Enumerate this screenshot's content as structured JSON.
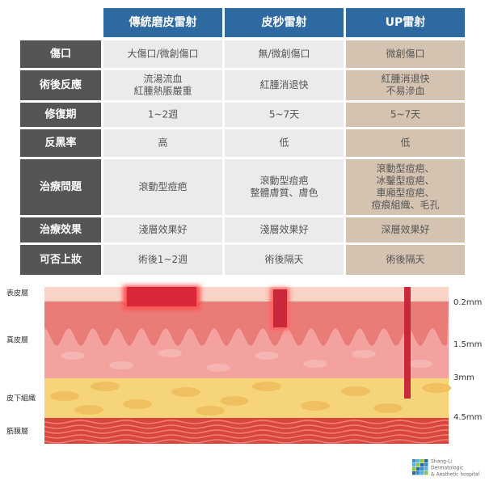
{
  "table": {
    "header": [
      "傳統磨皮雷射",
      "皮秒雷射",
      "UP雷射"
    ],
    "rows": [
      {
        "label": "傷口",
        "cells": [
          [
            "大傷口/微創傷口"
          ],
          [
            "無/微創傷口"
          ],
          [
            "微創傷口"
          ]
        ]
      },
      {
        "label": "術後反應",
        "cells": [
          [
            "流湯流血",
            "紅腫熱脹嚴重"
          ],
          [
            "紅腫消退快"
          ],
          [
            "紅腫消退快",
            "不易滲血"
          ]
        ]
      },
      {
        "label": "修復期",
        "cells": [
          [
            "1~2週"
          ],
          [
            "5~7天"
          ],
          [
            "5~7天"
          ]
        ]
      },
      {
        "label": "反黑率",
        "cells": [
          [
            "高"
          ],
          [
            "低"
          ],
          [
            "低"
          ]
        ]
      },
      {
        "label": "治療問題",
        "cells": [
          [
            "滾動型痘疤"
          ],
          [
            "滾動型痘疤",
            "整體膚質、膚色"
          ],
          [
            "滾動型痘疤、",
            "冰鑿型痘疤、",
            "車廂型痘疤、",
            "痘痕組織、毛孔"
          ]
        ]
      },
      {
        "label": "治療效果",
        "cells": [
          [
            "淺層效果好"
          ],
          [
            "淺層效果好"
          ],
          [
            "深層效果好"
          ]
        ]
      },
      {
        "label": "可否上妝",
        "cells": [
          [
            "術後1~2週"
          ],
          [
            "術後隔天"
          ],
          [
            "術後隔天"
          ]
        ]
      }
    ]
  },
  "diagram": {
    "layers": [
      "表皮層",
      "真皮層",
      "皮下組織",
      "筋膜層"
    ],
    "depths": [
      "0.2mm",
      "1.5mm",
      "3mm",
      "4.5mm"
    ]
  },
  "logo": {
    "lines": [
      "Shang-Li",
      "Dermatologic",
      "& Aesthetic hospital"
    ]
  }
}
